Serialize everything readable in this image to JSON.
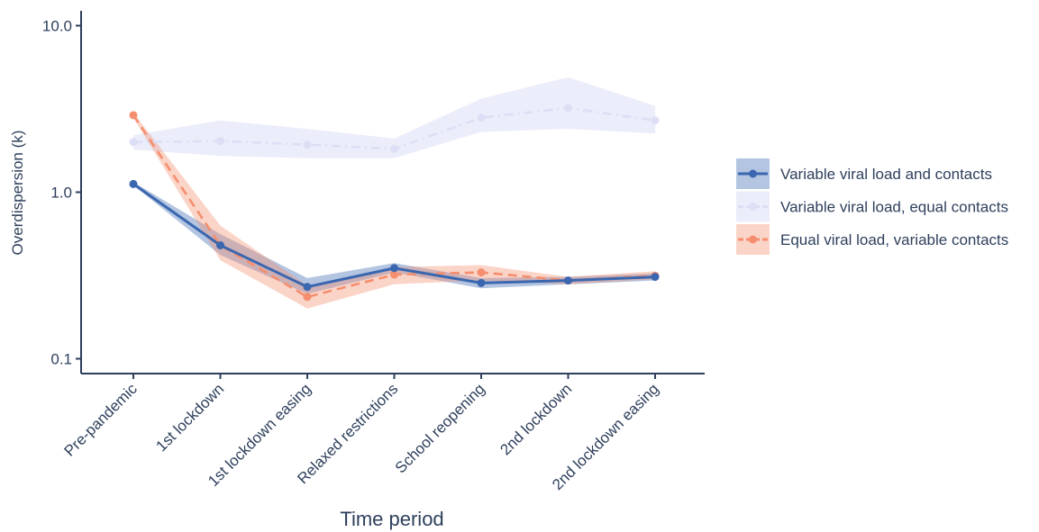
{
  "chart_data": {
    "type": "line",
    "title": "",
    "xlabel": "Time period",
    "ylabel": "Overdispersion (k)",
    "y_scale": "log",
    "ylim": [
      0.08,
      14
    ],
    "y_ticks": [
      0.1,
      1.0,
      10.0
    ],
    "y_tick_labels": [
      "0.1",
      "1.0",
      "10.0"
    ],
    "grid": false,
    "legend_position": "right",
    "categories": [
      "Pre-pandemic",
      "1st lockdown",
      "1st lockdown easing",
      "Relaxed restrictions",
      "School reopening",
      "2nd lockdown",
      "2nd lockdown easing"
    ],
    "series": [
      {
        "name": "Variable viral load and contacts",
        "color": "#3a67b0",
        "band_color": "#3a67b0",
        "line_style": "solid",
        "values": [
          1.12,
          0.48,
          0.27,
          0.35,
          0.285,
          0.295,
          0.31
        ],
        "lower": [
          1.1,
          0.42,
          0.245,
          0.33,
          0.265,
          0.28,
          0.295
        ],
        "upper": [
          1.15,
          0.56,
          0.305,
          0.375,
          0.305,
          0.31,
          0.325
        ]
      },
      {
        "name": "Variable viral load, equal contacts",
        "color": "#dcdff5",
        "band_color": "#dcdff5",
        "line_style": "dashdot",
        "values": [
          2.0,
          2.03,
          1.93,
          1.82,
          2.8,
          3.2,
          2.7
        ],
        "lower": [
          1.8,
          1.65,
          1.6,
          1.6,
          2.3,
          2.4,
          2.25
        ],
        "upper": [
          2.2,
          2.7,
          2.4,
          2.1,
          3.65,
          4.9,
          3.3
        ]
      },
      {
        "name": "Equal viral load, variable contacts",
        "color": "#f58e6e",
        "band_color": "#f58e6e",
        "line_style": "dashed",
        "values": [
          2.9,
          0.48,
          0.235,
          0.32,
          0.33,
          0.295,
          0.315
        ],
        "lower": [
          2.8,
          0.39,
          0.2,
          0.28,
          0.295,
          0.28,
          0.3
        ],
        "upper": [
          3.0,
          0.63,
          0.275,
          0.355,
          0.365,
          0.31,
          0.335
        ]
      }
    ]
  }
}
